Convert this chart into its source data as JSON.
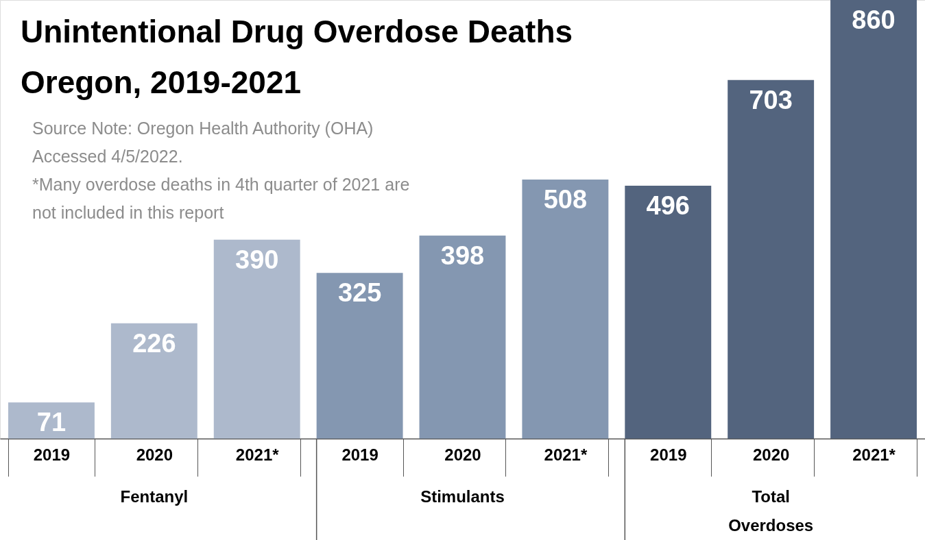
{
  "chart_data": {
    "type": "bar",
    "title": "Unintentional Drug Overdose Deaths",
    "subtitle": "Oregon, 2019-2021",
    "categories": [
      "2019",
      "2020",
      "2021*",
      "2019",
      "2020",
      "2021*",
      "2019",
      "2020",
      "2021*"
    ],
    "series": [
      {
        "name": "Fentanyl",
        "color": "#adb9cc",
        "values": [
          71,
          226,
          390,
          null,
          null,
          null,
          null,
          null,
          null
        ]
      },
      {
        "name": "Stimulants",
        "color": "#8497b1",
        "values": [
          null,
          null,
          null,
          325,
          398,
          508,
          null,
          null,
          null
        ]
      },
      {
        "name": "Total Overdoses",
        "color": "#53647e",
        "values": [
          null,
          null,
          null,
          null,
          null,
          null,
          496,
          703,
          860
        ]
      }
    ],
    "annotations": [
      "Source Note: Oregon Health Authority (OHA)",
      "Accessed 4/5/2022.",
      "*Many overdose deaths in 4th quarter of 2021 are",
      "not included in this report"
    ],
    "data_labels": true,
    "legend": false,
    "grid": false
  }
}
